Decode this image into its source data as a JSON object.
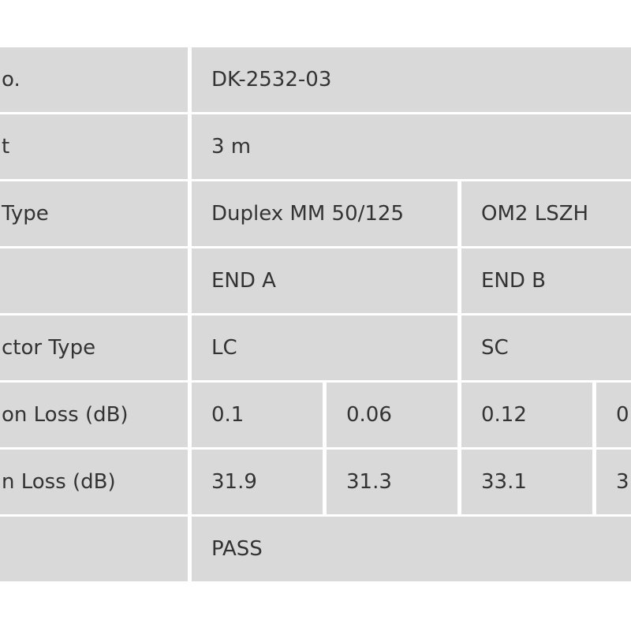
{
  "table": {
    "rows": [
      [
        "o.",
        "DK-2532-03"
      ],
      [
        "t",
        "3 m"
      ],
      [
        "Type",
        "Duplex MM 50/125",
        "OM2 LSZH"
      ],
      [
        "END A",
        "END B"
      ],
      [
        "ctor Type",
        "LC",
        "SC"
      ],
      [
        "on Loss (dB)",
        "0.1",
        "0.06",
        "0.12",
        "0"
      ],
      [
        "n Loss (dB)",
        "31.9",
        "31.3",
        "33.1",
        "3"
      ],
      [
        "PASS"
      ]
    ]
  }
}
